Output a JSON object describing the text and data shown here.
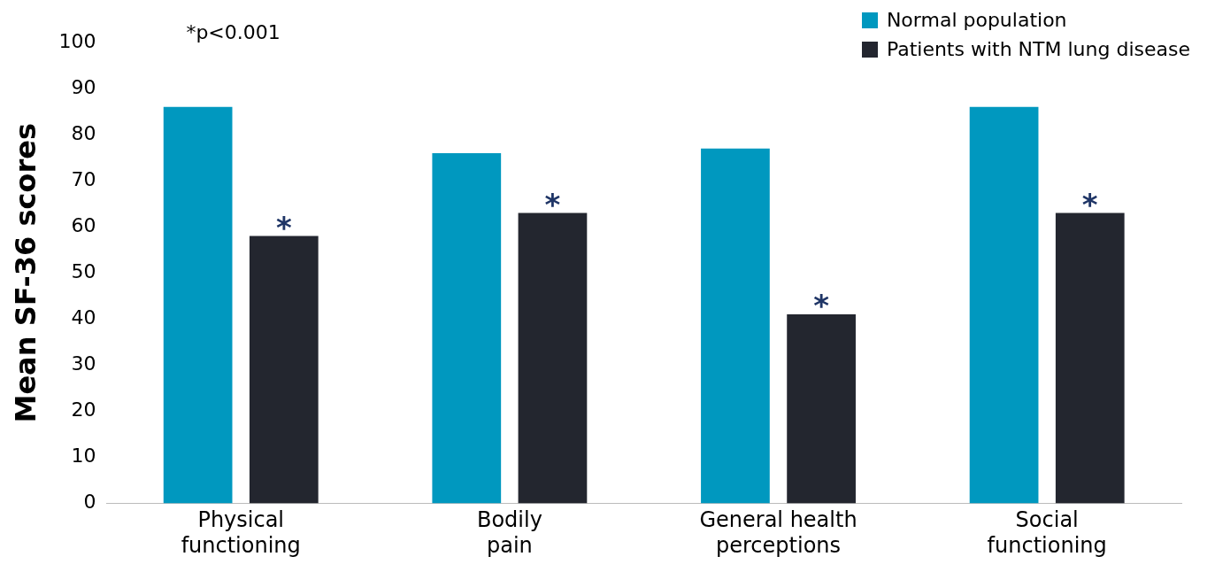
{
  "chart_data": {
    "type": "bar",
    "ylabel": "Mean SF-36 scores",
    "categories": [
      "Physical functioning",
      "Bodily pain",
      "General health perceptions",
      "Social functioning"
    ],
    "series": [
      {
        "name": "Normal population",
        "color": "#0098bf",
        "values": [
          86,
          76,
          77,
          86
        ]
      },
      {
        "name": "Patients with NTM lung disease",
        "color": "#23262f",
        "values": [
          58,
          63,
          41,
          63
        ],
        "value_labels": [
          "*",
          "*",
          "*",
          "*"
        ]
      }
    ],
    "ylim": [
      0,
      100
    ],
    "yticks": [
      0,
      10,
      20,
      30,
      40,
      50,
      60,
      70,
      80,
      90,
      100
    ],
    "grid": false,
    "legend": "top right",
    "annotations": [
      "*p<0.001"
    ]
  }
}
